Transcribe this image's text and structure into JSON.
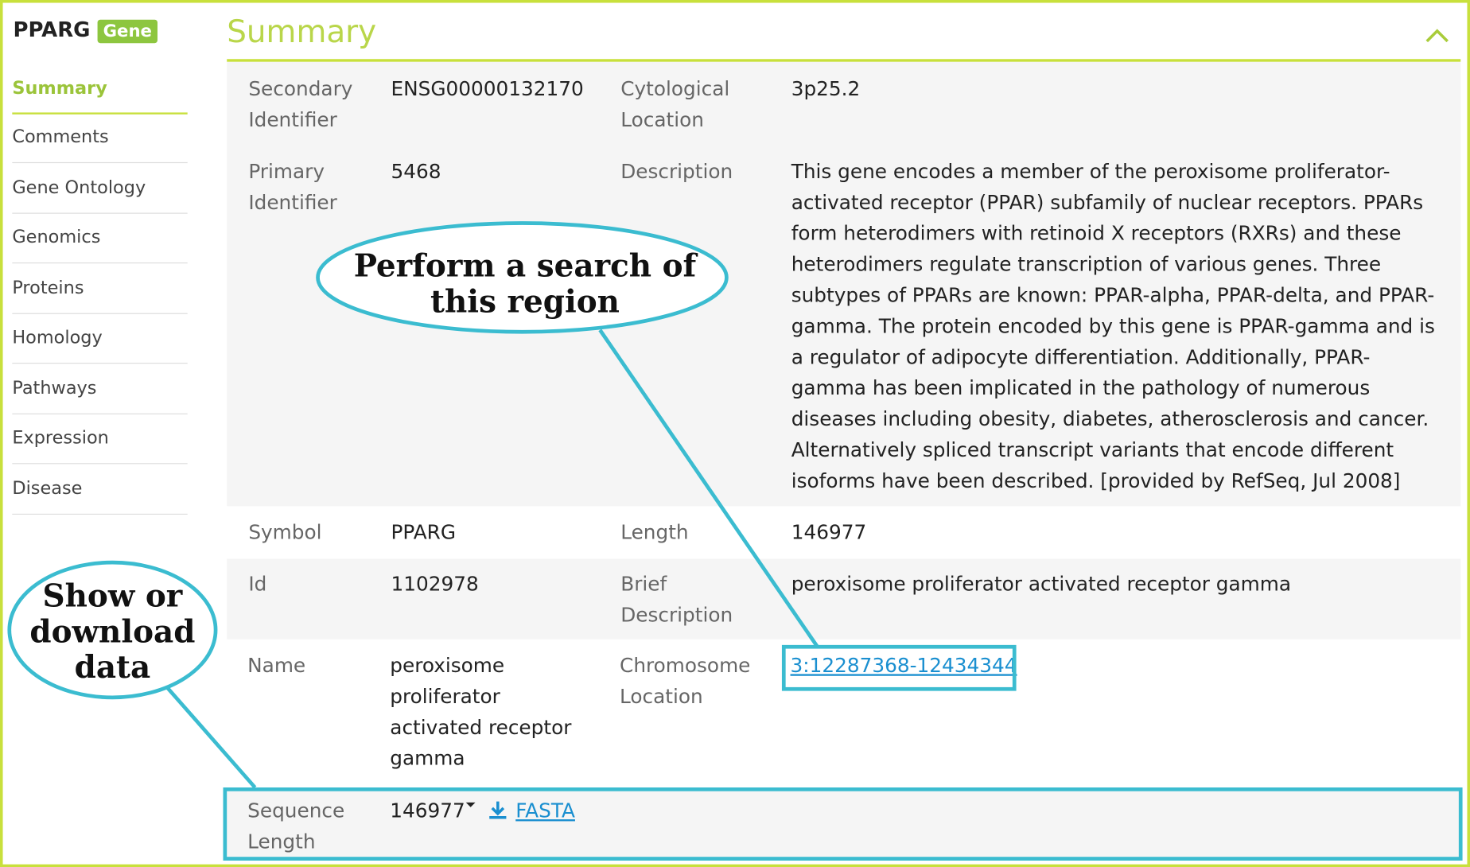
{
  "header": {
    "title": "PPARG",
    "badge": "Gene"
  },
  "nav": {
    "items": [
      "Summary",
      "Comments",
      "Gene Ontology",
      "Genomics",
      "Proteins",
      "Homology",
      "Pathways",
      "Expression",
      "Disease"
    ]
  },
  "section": {
    "title": "Summary"
  },
  "rows": [
    {
      "label": "Secondary Identifier",
      "value": "ENSG00000132170",
      "label2": "Cytological Location",
      "value2": "3p25.2"
    },
    {
      "label": "Primary Identifier",
      "value": "5468",
      "label2": "Description",
      "value2": "This gene encodes a member of the peroxisome proliferator-activated receptor (PPAR) subfamily of nuclear receptors. PPARs form heterodimers with retinoid X receptors (RXRs) and these heterodimers regulate transcription of various genes. Three subtypes of PPARs are known: PPAR-alpha, PPAR-delta, and PPAR-gamma. The protein encoded by this gene is PPAR-gamma and is a regulator of adipocyte differentiation. Additionally, PPAR-gamma has been implicated in the pathology of numerous diseases including obesity, diabetes, atherosclerosis and cancer. Alternatively spliced transcript variants that encode different isoforms have been described. [provided by RefSeq, Jul 2008]"
    },
    {
      "label": "Symbol",
      "value": "PPARG",
      "label2": "Length",
      "value2": "146977"
    },
    {
      "label": "Id",
      "value": "1102978",
      "label2": "Brief Description",
      "value2": "peroxisome proliferator activated receptor gamma"
    },
    {
      "label": "Name",
      "value": "peroxisome proliferator activated receptor gamma",
      "label2": "Chromosome Location",
      "value2": "3:12287368-12434344"
    }
  ],
  "sequence": {
    "label": "Sequence Length",
    "value": "146977",
    "link": "FASTA"
  },
  "callouts": {
    "search": "Perform a search of this region",
    "download": "Show or download data"
  }
}
